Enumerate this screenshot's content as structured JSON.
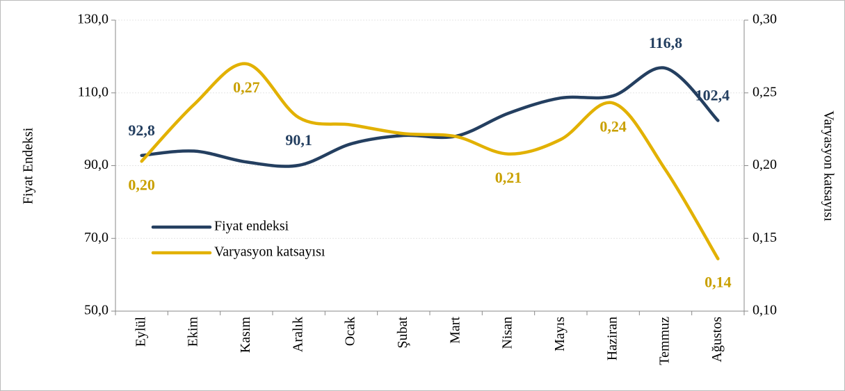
{
  "chart_data": {
    "type": "line",
    "y_label": "Fiyat Endeksi",
    "y2_label": "Varyasyon katsayısı",
    "categories": [
      "Eylül",
      "Ekim",
      "Kasım",
      "Aralık",
      "Ocak",
      "Şubat",
      "Mart",
      "Nisan",
      "Mayıs",
      "Haziran",
      "Temmuz",
      "Ağustos"
    ],
    "series": [
      {
        "name": "Fiyat endeksi",
        "color": "#243f60",
        "values": [
          92.8,
          94.0,
          91.0,
          90.1,
          96.0,
          98.3,
          98.1,
          104.4,
          108.6,
          109.2,
          116.8,
          102.4
        ],
        "value_labels": [
          "92,8",
          null,
          null,
          "90,1",
          null,
          null,
          null,
          null,
          null,
          null,
          "116,8",
          "102,4"
        ]
      },
      {
        "name": "Varyasyon katsayısı",
        "color": "#e2b100",
        "axis": "y2",
        "values": [
          0.203,
          0.242,
          0.27,
          0.233,
          0.228,
          0.222,
          0.22,
          0.208,
          0.218,
          0.243,
          0.197,
          0.136
        ],
        "value_labels": [
          "0,20",
          null,
          "0,27",
          null,
          null,
          null,
          null,
          "0,21",
          null,
          "0,24",
          null,
          "0,14"
        ]
      }
    ],
    "ylim": [
      50,
      130
    ],
    "yticks": [
      {
        "value": 50,
        "label": "50,0"
      },
      {
        "value": 70,
        "label": "70,0"
      },
      {
        "value": 90,
        "label": "90,0"
      },
      {
        "value": 110,
        "label": "110,0"
      },
      {
        "value": 130,
        "label": "130,0"
      }
    ],
    "y2lim": [
      0.1,
      0.3
    ],
    "y2ticks": [
      {
        "value": 0.1,
        "label": "0,10"
      },
      {
        "value": 0.15,
        "label": "0,15"
      },
      {
        "value": 0.2,
        "label": "0,20"
      },
      {
        "value": 0.25,
        "label": "0,25"
      },
      {
        "value": 0.3,
        "label": "0,30"
      }
    ],
    "grid": true,
    "smooth": true
  }
}
